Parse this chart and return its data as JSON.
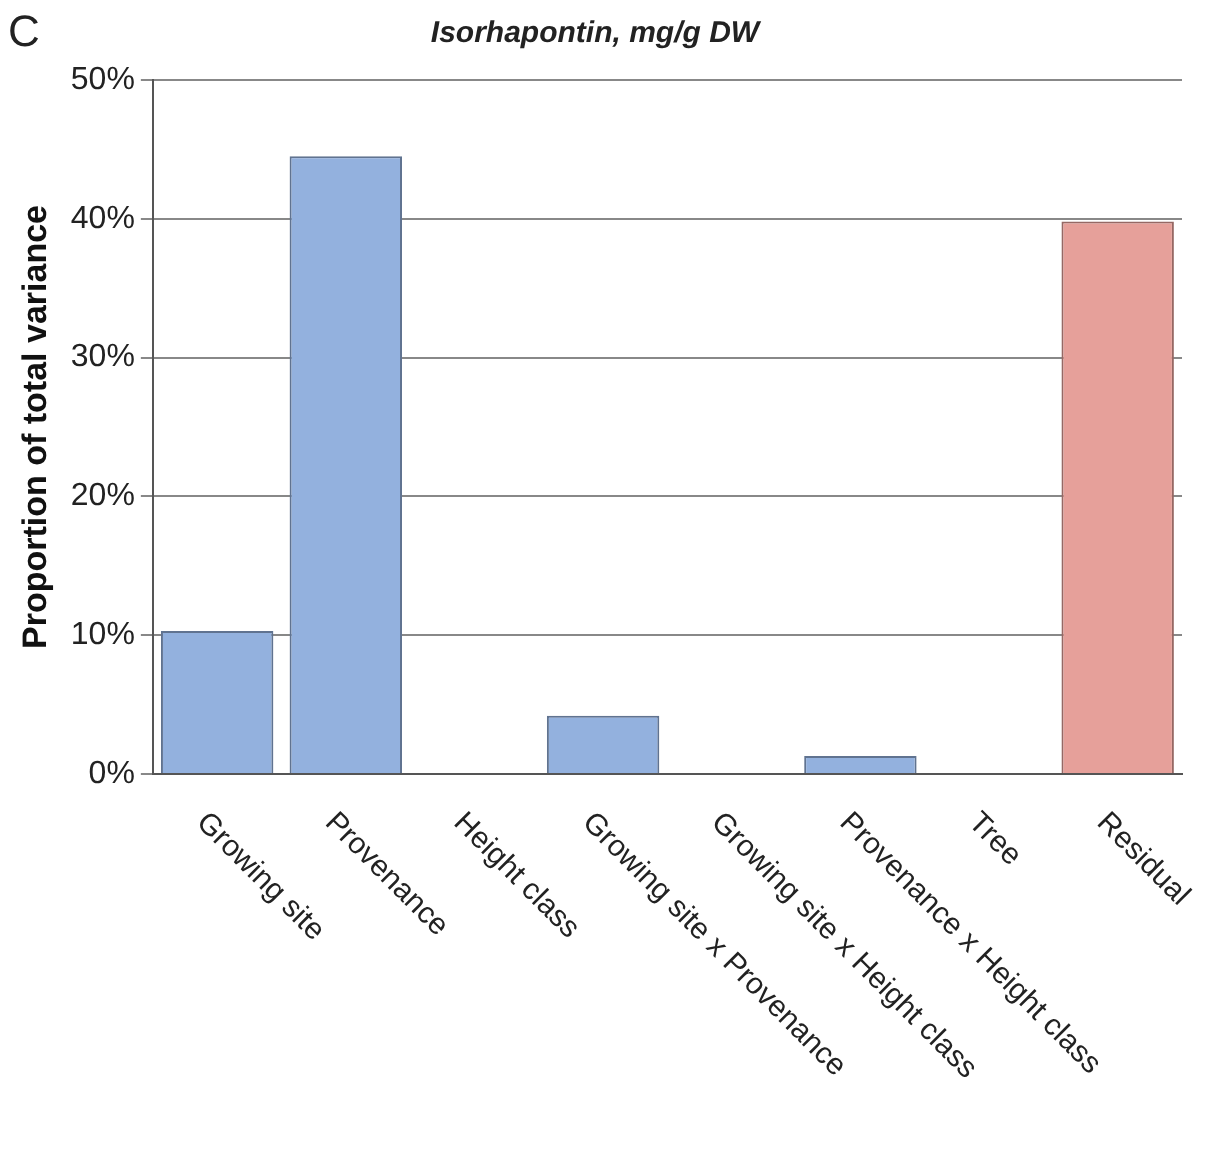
{
  "chart_data": {
    "type": "bar",
    "title": "Isorhapontin, mg/g DW",
    "ylabel": "Proportion of total variance",
    "categories": [
      "Growing site",
      "Provenance",
      "Height class",
      "Growing site x Provenance",
      "Growing site x Height class",
      "Provenance x Height class",
      "Tree",
      "Residual"
    ],
    "values": [
      10.3,
      44.5,
      0,
      4.2,
      0,
      1.3,
      0,
      39.8
    ],
    "colors": [
      "#93b1de",
      "#93b1de",
      "#93b1de",
      "#93b1de",
      "#93b1de",
      "#93b1de",
      "#93b1de",
      "#e6a09a"
    ],
    "ylim": [
      0,
      50
    ],
    "yticks": [
      {
        "value": 0,
        "label": "0%"
      },
      {
        "value": 10,
        "label": "10%"
      },
      {
        "value": 20,
        "label": "20%"
      },
      {
        "value": 30,
        "label": "30%"
      },
      {
        "value": 40,
        "label": "40%"
      },
      {
        "value": 50,
        "label": "50%"
      }
    ],
    "grid": "y",
    "legend": false,
    "annotations": [
      "C"
    ]
  }
}
